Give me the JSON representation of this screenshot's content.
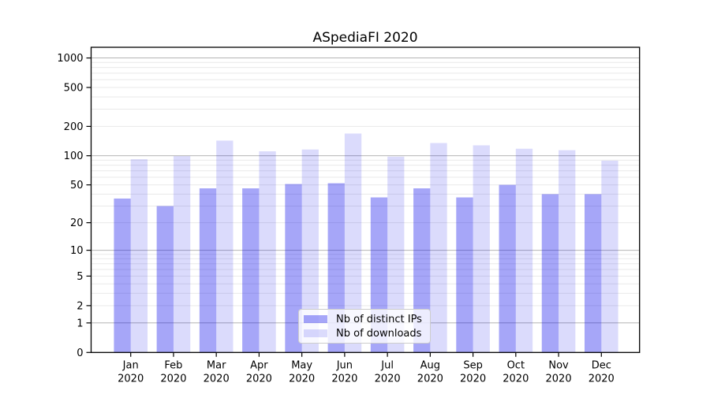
{
  "title": "ASpediaFI 2020",
  "colors": {
    "ips_bar": "rgba(0,0,235,0.35)",
    "downloads_bar": "rgba(0,0,235,0.14)",
    "major_grid": "#b5b5b5",
    "minor_grid": "#e9e9e9",
    "axis": "#000000",
    "background": "#ffffff"
  },
  "legend": {
    "items": [
      {
        "label": "Nb of distinct IPs",
        "series": "ips"
      },
      {
        "label": "Nb of downloads",
        "series": "downloads"
      }
    ]
  },
  "chart_data": {
    "type": "bar",
    "title": "ASpediaFI 2020",
    "scale": "log10(1+x)",
    "categories": [
      "Jan",
      "Feb",
      "Mar",
      "Apr",
      "May",
      "Jun",
      "Jul",
      "Aug",
      "Sep",
      "Oct",
      "Nov",
      "Dec"
    ],
    "x_tick_year": "2020",
    "series": [
      {
        "name": "Nb of distinct IPs",
        "values": [
          36,
          30,
          46,
          46,
          51,
          52,
          37,
          46,
          37,
          50,
          40,
          40
        ]
      },
      {
        "name": "Nb of downloads",
        "values": [
          92,
          99,
          143,
          111,
          116,
          169,
          98,
          135,
          128,
          118,
          114,
          89
        ]
      }
    ],
    "y_ticks": [
      0,
      1,
      2,
      5,
      10,
      20,
      50,
      100,
      200,
      500,
      1000
    ],
    "ylim": [
      0,
      1285
    ],
    "xlabel": "",
    "ylabel": "",
    "grid": true,
    "legend_position": "lower center"
  }
}
